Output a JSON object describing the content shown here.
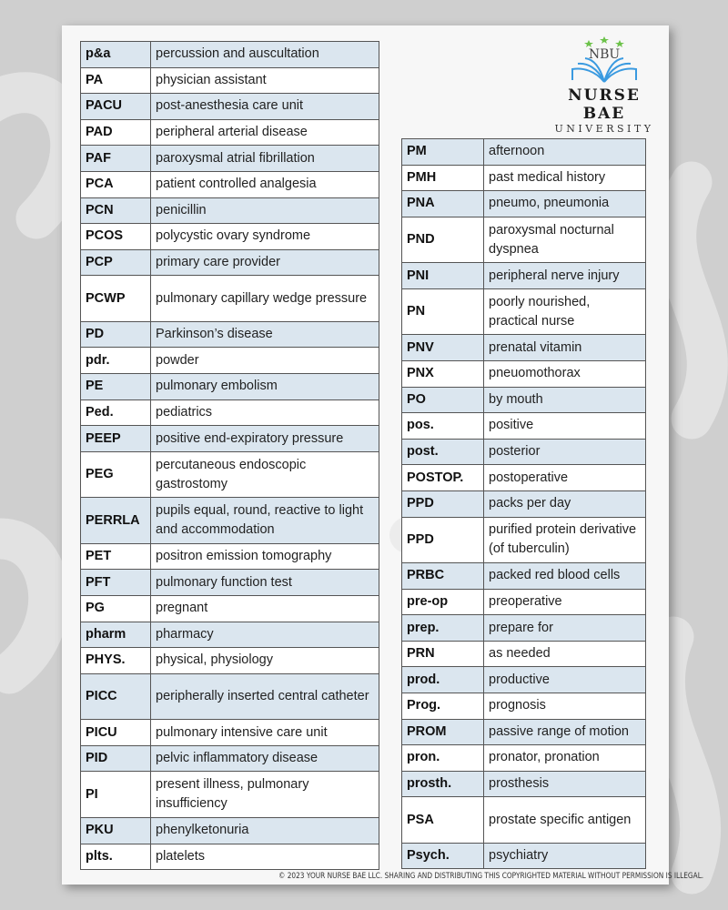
{
  "logo": {
    "monogram": "NBU",
    "name": "NURSE BAE",
    "sub": "UNIVERSITY",
    "colors": {
      "book": "#3a9ae0",
      "stars": "#6cc24a"
    }
  },
  "colors": {
    "row_shade": "#dbe6ef",
    "row_plain": "#ffffff",
    "border": "#555555"
  },
  "left_table": [
    {
      "abbr": "p&a",
      "meaning": "percussion and auscultation"
    },
    {
      "abbr": "PA",
      "meaning": "physician assistant"
    },
    {
      "abbr": "PACU",
      "meaning": "post-anesthesia care unit"
    },
    {
      "abbr": "PAD",
      "meaning": "peripheral arterial disease"
    },
    {
      "abbr": "PAF",
      "meaning": "paroxysmal atrial fibrillation"
    },
    {
      "abbr": "PCA",
      "meaning": "patient controlled analgesia"
    },
    {
      "abbr": "PCN",
      "meaning": "penicillin"
    },
    {
      "abbr": "PCOS",
      "meaning": "polycystic ovary syndrome"
    },
    {
      "abbr": "PCP",
      "meaning": "primary care provider"
    },
    {
      "abbr": "PCWP",
      "meaning": "pulmonary capillary wedge pressure",
      "tall": true
    },
    {
      "abbr": "PD",
      "meaning": "Parkinson’s disease"
    },
    {
      "abbr": "pdr.",
      "meaning": "powder"
    },
    {
      "abbr": "PE",
      "meaning": "pulmonary embolism"
    },
    {
      "abbr": "Ped.",
      "meaning": "pediatrics"
    },
    {
      "abbr": "PEEP",
      "meaning": "positive end-expiratory pressure"
    },
    {
      "abbr": "PEG",
      "meaning": "percutaneous endoscopic gastrostomy",
      "tall": true
    },
    {
      "abbr": "PERRLA",
      "meaning": "pupils equal, round, reactive to light and accommodation",
      "tall": true
    },
    {
      "abbr": "PET",
      "meaning": "positron emission tomography"
    },
    {
      "abbr": "PFT",
      "meaning": "pulmonary function test"
    },
    {
      "abbr": "PG",
      "meaning": "pregnant"
    },
    {
      "abbr": "pharm",
      "meaning": "pharmacy"
    },
    {
      "abbr": "PHYS.",
      "meaning": "physical, physiology"
    },
    {
      "abbr": "PICC",
      "meaning": "peripherally inserted central catheter",
      "tall": true
    },
    {
      "abbr": "PICU",
      "meaning": "pulmonary intensive care unit"
    },
    {
      "abbr": "PID",
      "meaning": "pelvic inflammatory disease"
    },
    {
      "abbr": "PI",
      "meaning": "present illness, pulmonary insufficiency",
      "tall": true
    },
    {
      "abbr": "PKU",
      "meaning": "phenylketonuria"
    },
    {
      "abbr": "plts.",
      "meaning": "platelets"
    }
  ],
  "right_table": [
    {
      "abbr": "PM",
      "meaning": "afternoon"
    },
    {
      "abbr": "PMH",
      "meaning": "past medical history"
    },
    {
      "abbr": "PNA",
      "meaning": "pneumo, pneumonia"
    },
    {
      "abbr": "PND",
      "meaning": "paroxysmal nocturnal dyspnea",
      "tall": true
    },
    {
      "abbr": "PNI",
      "meaning": "peripheral nerve injury"
    },
    {
      "abbr": "PN",
      "meaning": "poorly nourished, practical nurse",
      "tall": true
    },
    {
      "abbr": "PNV",
      "meaning": "prenatal vitamin"
    },
    {
      "abbr": "PNX",
      "meaning": "pneuomothorax"
    },
    {
      "abbr": "PO",
      "meaning": "by mouth"
    },
    {
      "abbr": "pos.",
      "meaning": "positive"
    },
    {
      "abbr": "post.",
      "meaning": "posterior"
    },
    {
      "abbr": "POSTOP.",
      "meaning": "postoperative"
    },
    {
      "abbr": "PPD",
      "meaning": "packs per day"
    },
    {
      "abbr": "PPD",
      "meaning": "purified protein derivative (of tuberculin)",
      "tall": true
    },
    {
      "abbr": "PRBC",
      "meaning": "packed red blood cells"
    },
    {
      "abbr": "pre-op",
      "meaning": "preoperative"
    },
    {
      "abbr": "prep.",
      "meaning": "prepare for"
    },
    {
      "abbr": "PRN",
      "meaning": "as needed"
    },
    {
      "abbr": "prod.",
      "meaning": "productive"
    },
    {
      "abbr": "Prog.",
      "meaning": "prognosis"
    },
    {
      "abbr": "PROM",
      "meaning": "passive range of motion"
    },
    {
      "abbr": "pron.",
      "meaning": "pronator, pronation"
    },
    {
      "abbr": "prosth.",
      "meaning": "prosthesis"
    },
    {
      "abbr": "PSA",
      "meaning": "prostate specific antigen",
      "tall": true
    },
    {
      "abbr": "Psych.",
      "meaning": "psychiatry"
    }
  ],
  "footer": "©  2023 YOUR NURSE BAE LLC. SHARING AND DISTRIBUTING THIS COPYRIGHTED MATERIAL WITHOUT PERMISSION IS ILLEGAL."
}
